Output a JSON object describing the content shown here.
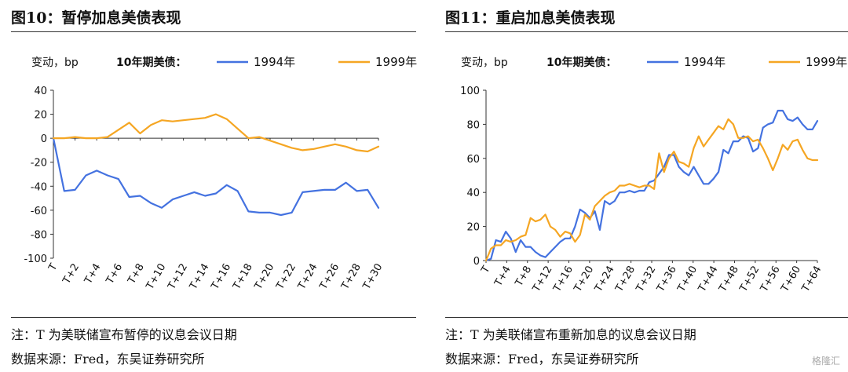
{
  "left": {
    "title": "图10：暂停加息美债表现",
    "note": "注：T 为美联储宣布暂停的议息会议日期",
    "source": "数据来源：Fred，东吴证券研究所"
  },
  "right": {
    "title": "图11：重启加息美债表现",
    "note": "注：T 为美联储宣布重新加息的议息会议日期",
    "source": "数据来源：Fred，东吴证券研究所"
  },
  "watermark": "格隆汇",
  "colors": {
    "series_1994": "#4472e0",
    "series_1999": "#f5a623"
  },
  "chart_data": [
    {
      "type": "line",
      "ylabel": "变动，bp",
      "legend_title": "10年期美债：",
      "legend_position": "top",
      "ylim": [
        -100,
        40
      ],
      "yticks": [
        -100,
        -80,
        -60,
        -40,
        -20,
        0,
        20,
        40
      ],
      "grid": false,
      "tick_labels": [
        "T",
        "T+2",
        "T+4",
        "T+6",
        "T+8",
        "T+10",
        "T+12",
        "T+14",
        "T+16",
        "T+18",
        "T+20",
        "T+22",
        "T+24",
        "T+26",
        "T+28",
        "T+30"
      ],
      "x_range": [
        0,
        30
      ],
      "series": [
        {
          "name": "1994年",
          "values": [
            0,
            -44,
            -43,
            -31,
            -27,
            -31,
            -34,
            -49,
            -48,
            -54,
            -58,
            -51,
            -48,
            -45,
            -48,
            -46,
            -39,
            -44,
            -61,
            -62,
            -62,
            -64,
            -62,
            -45,
            -44,
            -43,
            -43,
            -37,
            -44,
            -43,
            -58
          ]
        },
        {
          "name": "1999年",
          "values": [
            0,
            0,
            1,
            0,
            0,
            1,
            7,
            13,
            4,
            11,
            15,
            14,
            15,
            16,
            17,
            20,
            16,
            8,
            0,
            1,
            -2,
            -5,
            -8,
            -10,
            -9,
            -7,
            -5,
            -7,
            -10,
            -11,
            -7
          ]
        }
      ]
    },
    {
      "type": "line",
      "ylabel": "变动，bp",
      "legend_title": "10年期美债：",
      "legend_position": "top",
      "ylim": [
        0,
        100
      ],
      "yticks": [
        0,
        20,
        40,
        60,
        80,
        100
      ],
      "grid": false,
      "tick_labels": [
        "T",
        "T+4",
        "T+8",
        "T+12",
        "T+16",
        "T+20",
        "T+24",
        "T+28",
        "T+32",
        "T+36",
        "T+40",
        "T+44",
        "T+48",
        "T+52",
        "T+56",
        "T+60",
        "T+64"
      ],
      "x_range": [
        0,
        67
      ],
      "series": [
        {
          "name": "1994年",
          "values": [
            0,
            1,
            12,
            11,
            17,
            13,
            5,
            12,
            8,
            8,
            5,
            3,
            2,
            5,
            8,
            11,
            13,
            13,
            20,
            30,
            28,
            25,
            29,
            18,
            35,
            33,
            35,
            40,
            40,
            41,
            40,
            41,
            41,
            46,
            47,
            51,
            55,
            62,
            62,
            55,
            52,
            50,
            55,
            50,
            45,
            45,
            48,
            52,
            65,
            63,
            70,
            70,
            73,
            72,
            64,
            66,
            78,
            80,
            81,
            88,
            88,
            83,
            82,
            84,
            80,
            77,
            77,
            82
          ]
        },
        {
          "name": "1999年",
          "values": [
            0,
            7,
            9,
            9,
            12,
            11,
            12,
            14,
            15,
            25,
            23,
            24,
            27,
            20,
            18,
            14,
            17,
            16,
            11,
            15,
            27,
            24,
            32,
            35,
            38,
            40,
            41,
            44,
            44,
            45,
            44,
            43,
            44,
            44,
            42,
            63,
            52,
            60,
            64,
            58,
            57,
            55,
            66,
            73,
            67,
            71,
            75,
            79,
            77,
            83,
            80,
            72,
            72,
            73,
            70,
            71,
            66,
            60,
            53,
            60,
            68,
            65,
            70,
            71,
            65,
            60,
            59,
            59
          ]
        }
      ]
    }
  ]
}
